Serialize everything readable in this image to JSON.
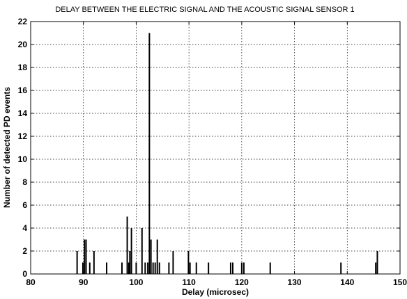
{
  "chart_data": {
    "type": "bar",
    "title": "DELAY BETWEEN THE ELECTRIC SIGNAL AND THE ACOUSTIC SIGNAL SENSOR 1",
    "xlabel": "Delay (microsec)",
    "ylabel": "Number of detected PD events",
    "xlim": [
      80,
      150
    ],
    "ylim": [
      0,
      22
    ],
    "xticks": [
      "80",
      "90",
      "100",
      "110",
      "120",
      "130",
      "140",
      "150"
    ],
    "yticks": [
      "0",
      "2",
      "4",
      "6",
      "8",
      "10",
      "12",
      "14",
      "16",
      "18",
      "20",
      "22"
    ],
    "grid": true,
    "x": [
      88.8,
      89.9,
      90.2,
      90.5,
      91.2,
      92.0,
      94.4,
      97.3,
      98.3,
      98.6,
      98.8,
      99.1,
      100.0,
      101.1,
      101.7,
      102.2,
      102.5,
      102.8,
      103.2,
      103.6,
      104.0,
      104.4,
      106.2,
      107.0,
      109.9,
      110.2,
      111.4,
      113.7,
      117.9,
      118.3,
      120.0,
      120.4,
      125.4,
      138.8,
      145.4,
      145.7
    ],
    "values": [
      2,
      1,
      3,
      3,
      1,
      2,
      1,
      1,
      5,
      1,
      2,
      4,
      1,
      4,
      1,
      1,
      21,
      3,
      1,
      1,
      3,
      1,
      1,
      2,
      2,
      1,
      1,
      1,
      1,
      1,
      1,
      1,
      1,
      1,
      1,
      2
    ]
  }
}
